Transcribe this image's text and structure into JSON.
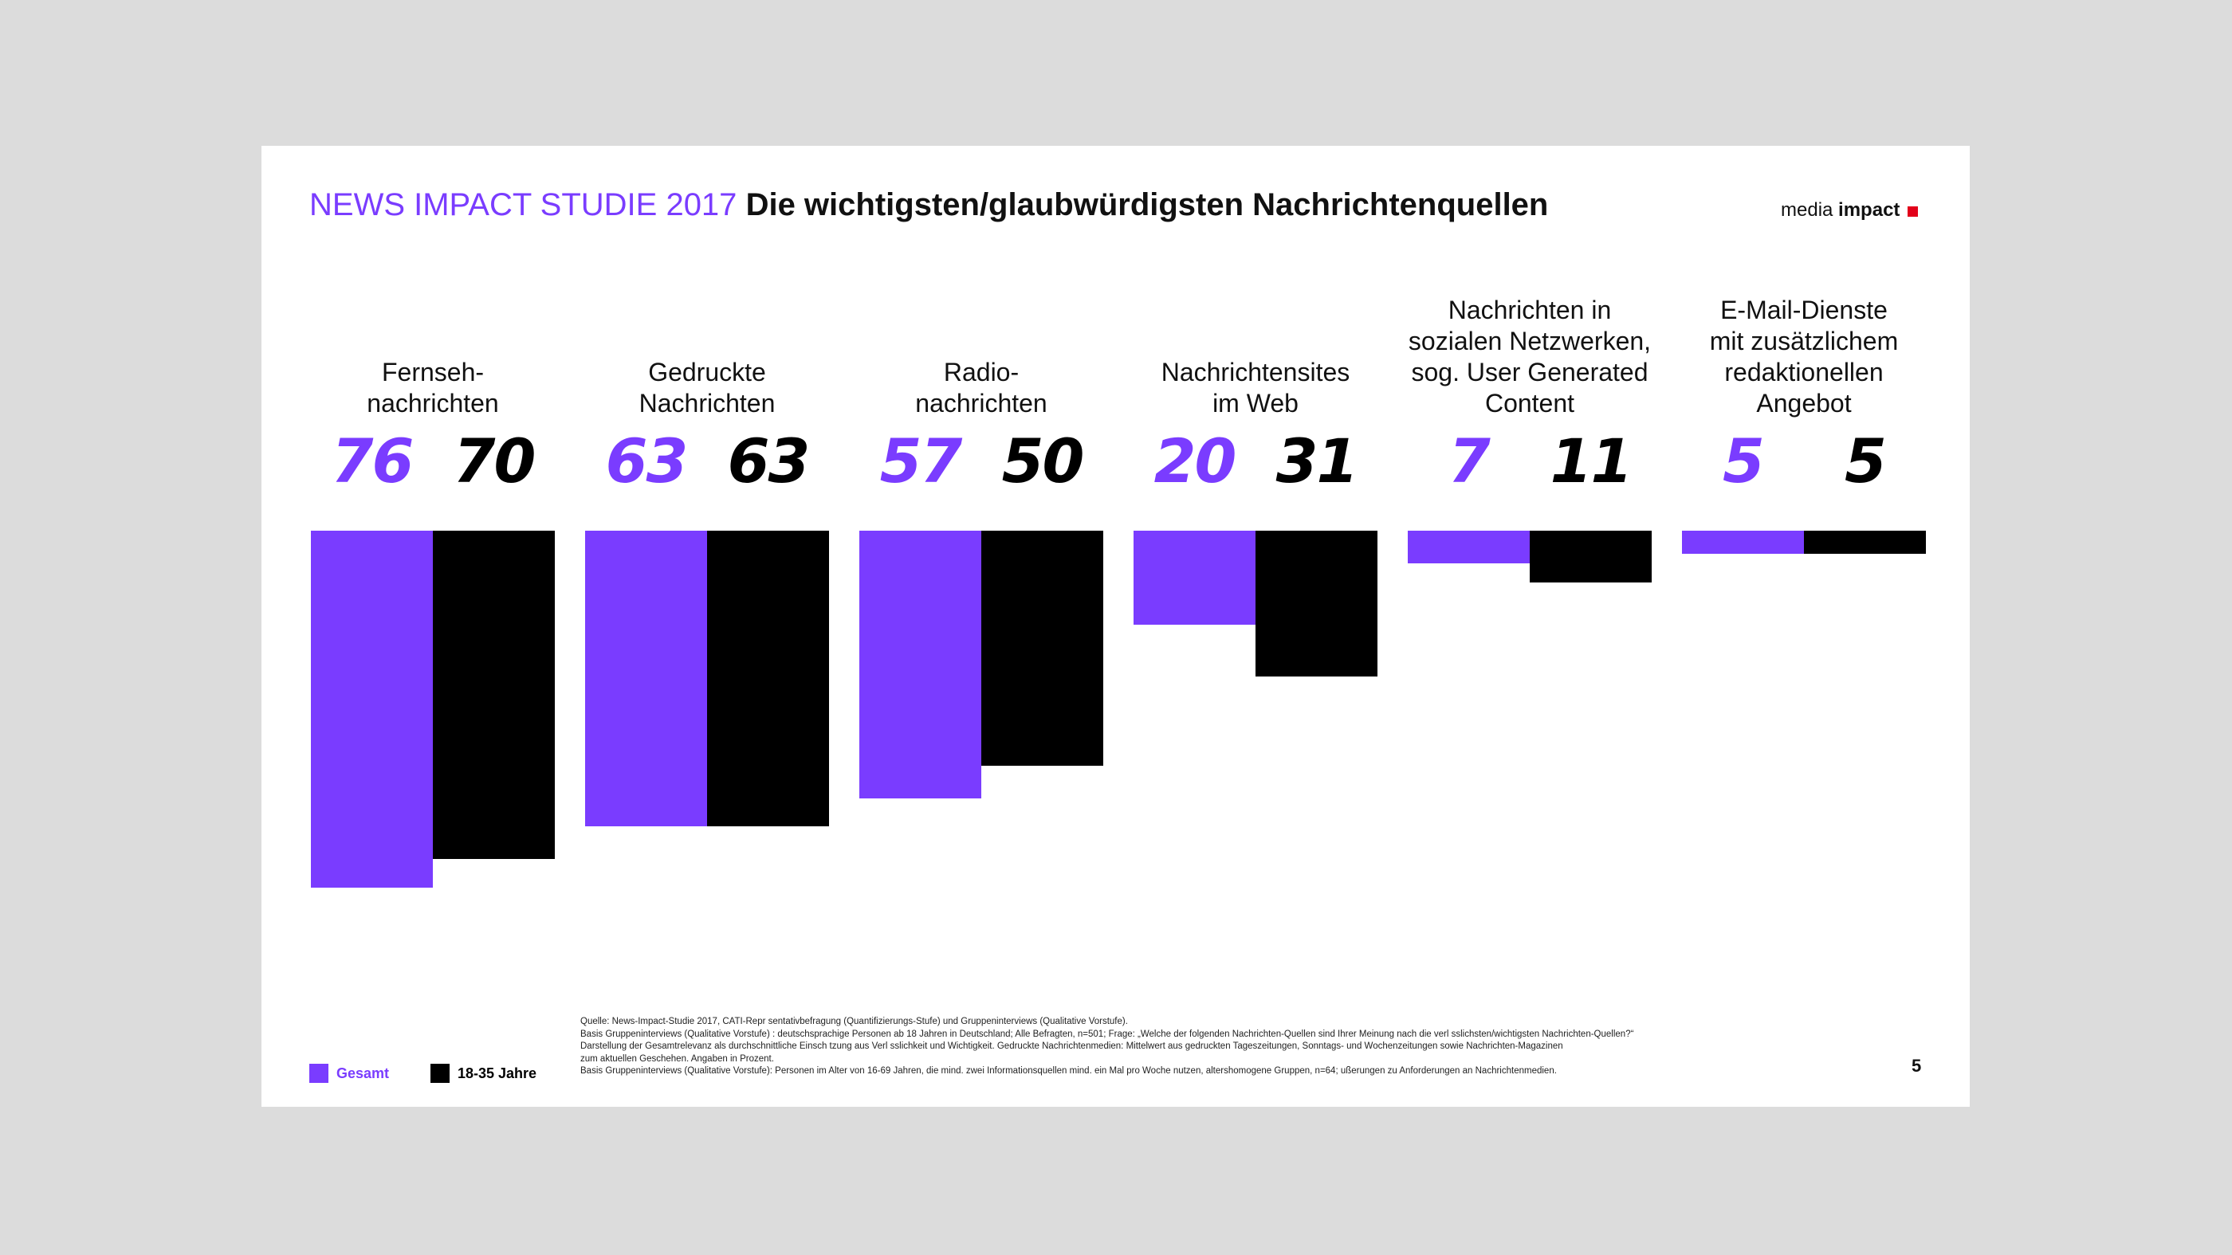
{
  "slide": {
    "title_study": "NEWS IMPACT STUDIE 2017",
    "title_topic": "Die wichtigsten/glaubwürdigsten Nachrichtenquellen",
    "logo_light": "media",
    "logo_bold": "impact",
    "page_number": "5"
  },
  "legend": {
    "total": "Gesamt",
    "young": "18-35 Jahre"
  },
  "footnote": [
    "Quelle: News-Impact-Studie 2017, CATI-Repr  sentativbefragung (Quantifizierungs-Stufe) und Gruppeninterviews (Qualitative Vorstufe).",
    "Basis Gruppeninterviews (Qualitative Vorstufe) : deutschsprachige Personen ab 18 Jahren in Deutschland; Alle Befragten, n=501; Frage: „Welche der folgenden Nachrichten-Quellen sind Ihrer Meinung nach die verl  sslichsten/wichtigsten Nachrichten-Quellen?“",
    "Darstellung der Gesamtrelevanz als durchschnittliche Einsch  tzung aus Verl  sslichkeit und Wichtigkeit. Gedruckte Nachrichtenmedien: Mittelwert aus gedruckten Tageszeitungen, Sonntags- und Wochenzeitungen sowie Nachrichten-Magazinen",
    "zum aktuellen Geschehen. Angaben in Prozent.",
    "Basis Gruppeninterviews (Qualitative Vorstufe): Personen im Alter von 16-69 Jahren, die mind. zwei Informationsquellen mind. ein Mal pro Woche nutzen, altershomogene Gruppen, n=64;   ußerungen zu Anforderungen an Nachrichtenmedien."
  ],
  "colors": {
    "total": "#7a3cff",
    "young": "#000000",
    "accent": "#e2001a"
  },
  "chart_data": {
    "type": "bar",
    "orientation": "vertical-downward",
    "categories": [
      [
        "Fernseh-",
        "nachrichten"
      ],
      [
        "Gedruckte",
        "Nachrichten"
      ],
      [
        "Radio-",
        "nachrichten"
      ],
      [
        "Nachrichtensites",
        "im Web"
      ],
      [
        "Nachrichten in",
        "sozialen Netzwerken,",
        "sog. User Generated",
        "Content"
      ],
      [
        "E-Mail-Dienste",
        "mit zusätzlichem",
        "redaktionellen",
        "Angebot"
      ]
    ],
    "series": [
      {
        "name": "Gesamt",
        "values": [
          76,
          63,
          57,
          20,
          7,
          5
        ]
      },
      {
        "name": "18-35 Jahre",
        "values": [
          70,
          63,
          50,
          31,
          11,
          5
        ]
      }
    ],
    "value_labels": [
      [
        "76",
        "63",
        "57",
        "20",
        "7",
        "5"
      ],
      [
        "70",
        "63",
        "50",
        "31",
        "11",
        "5"
      ]
    ],
    "ylim": [
      0,
      100
    ],
    "grid": false,
    "legend": "bottom-left",
    "xlabel": "",
    "ylabel": ""
  }
}
